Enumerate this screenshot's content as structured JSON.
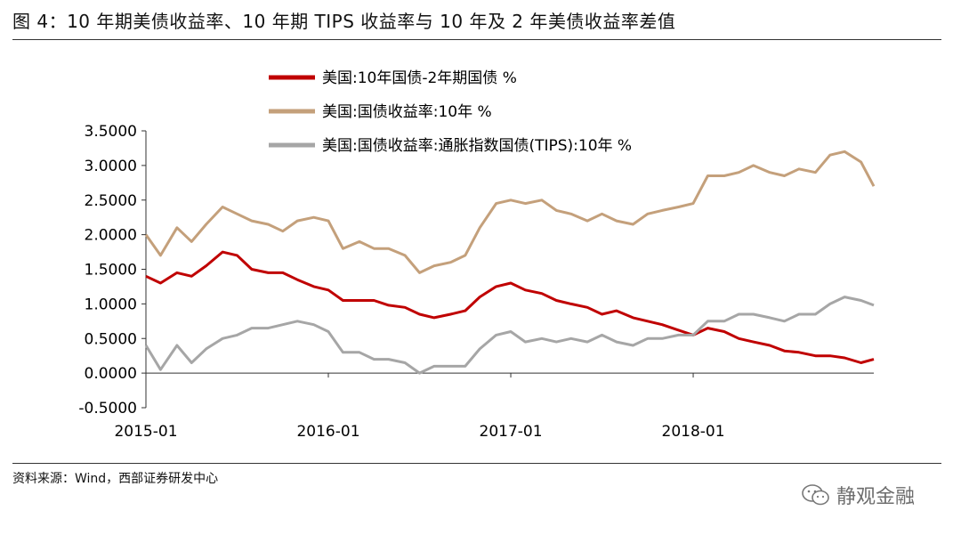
{
  "title": "图 4：10 年期美债收益率、10 年期 TIPS 收益率与 10 年及 2 年美债收益率差值",
  "source": "资料来源：Wind，西部证券研发中心",
  "watermark": "静观金融",
  "colors": {
    "spread": "#c00000",
    "nominal": "#c4a07b",
    "tips": "#a6a6a6"
  },
  "chart_data": {
    "type": "line",
    "title": "",
    "xlabel": "",
    "ylabel": "",
    "xlim": [
      2015.0,
      2018.99
    ],
    "ylim": [
      -0.5,
      3.5
    ],
    "yticks": [
      3.5,
      3.0,
      2.5,
      2.0,
      1.5,
      1.0,
      0.5,
      0.0,
      -0.5
    ],
    "ytick_labels": [
      "3.5000",
      "3.0000",
      "2.5000",
      "2.0000",
      "1.5000",
      "1.0000",
      "0.5000",
      "0.0000",
      "-0.5000"
    ],
    "xticks": [
      2015.0,
      2016.0,
      2017.0,
      2018.0
    ],
    "xtick_labels": [
      "2015-01",
      "2016-01",
      "2017-01",
      "2018-01"
    ],
    "legend_position": "top-center",
    "series": [
      {
        "name": "美国:10年国债-2年期国债 %",
        "color_key": "spread",
        "x": [
          2015.0,
          2015.08,
          2015.17,
          2015.25,
          2015.33,
          2015.42,
          2015.5,
          2015.58,
          2015.67,
          2015.75,
          2015.83,
          2015.92,
          2016.0,
          2016.08,
          2016.17,
          2016.25,
          2016.33,
          2016.42,
          2016.5,
          2016.58,
          2016.67,
          2016.75,
          2016.83,
          2016.92,
          2017.0,
          2017.08,
          2017.17,
          2017.25,
          2017.33,
          2017.42,
          2017.5,
          2017.58,
          2017.67,
          2017.75,
          2017.83,
          2017.92,
          2018.0,
          2018.08,
          2018.17,
          2018.25,
          2018.33,
          2018.42,
          2018.5,
          2018.58,
          2018.67,
          2018.75,
          2018.83,
          2018.92,
          2018.99
        ],
        "y": [
          1.4,
          1.3,
          1.45,
          1.4,
          1.55,
          1.75,
          1.7,
          1.5,
          1.45,
          1.45,
          1.35,
          1.25,
          1.2,
          1.05,
          1.05,
          1.05,
          0.98,
          0.95,
          0.85,
          0.8,
          0.85,
          0.9,
          1.1,
          1.25,
          1.3,
          1.2,
          1.15,
          1.05,
          1.0,
          0.95,
          0.85,
          0.9,
          0.8,
          0.75,
          0.7,
          0.62,
          0.55,
          0.65,
          0.6,
          0.5,
          0.45,
          0.4,
          0.32,
          0.3,
          0.25,
          0.25,
          0.22,
          0.15,
          0.2
        ]
      },
      {
        "name": "美国:国债收益率:10年 %",
        "color_key": "nominal",
        "x": [
          2015.0,
          2015.08,
          2015.17,
          2015.25,
          2015.33,
          2015.42,
          2015.5,
          2015.58,
          2015.67,
          2015.75,
          2015.83,
          2015.92,
          2016.0,
          2016.08,
          2016.17,
          2016.25,
          2016.33,
          2016.42,
          2016.5,
          2016.58,
          2016.67,
          2016.75,
          2016.83,
          2016.92,
          2017.0,
          2017.08,
          2017.17,
          2017.25,
          2017.33,
          2017.42,
          2017.5,
          2017.58,
          2017.67,
          2017.75,
          2017.83,
          2017.92,
          2018.0,
          2018.08,
          2018.17,
          2018.25,
          2018.33,
          2018.42,
          2018.5,
          2018.58,
          2018.67,
          2018.75,
          2018.83,
          2018.92,
          2018.99
        ],
        "y": [
          2.0,
          1.7,
          2.1,
          1.9,
          2.15,
          2.4,
          2.3,
          2.2,
          2.15,
          2.05,
          2.2,
          2.25,
          2.2,
          1.8,
          1.9,
          1.8,
          1.8,
          1.7,
          1.45,
          1.55,
          1.6,
          1.7,
          2.1,
          2.45,
          2.5,
          2.45,
          2.5,
          2.35,
          2.3,
          2.2,
          2.3,
          2.2,
          2.15,
          2.3,
          2.35,
          2.4,
          2.45,
          2.85,
          2.85,
          2.9,
          3.0,
          2.9,
          2.85,
          2.95,
          2.9,
          3.15,
          3.2,
          3.05,
          2.7
        ]
      },
      {
        "name": "美国:国债收益率:通胀指数国债(TIPS):10年 %",
        "color_key": "tips",
        "x": [
          2015.0,
          2015.08,
          2015.17,
          2015.25,
          2015.33,
          2015.42,
          2015.5,
          2015.58,
          2015.67,
          2015.75,
          2015.83,
          2015.92,
          2016.0,
          2016.08,
          2016.17,
          2016.25,
          2016.33,
          2016.42,
          2016.5,
          2016.58,
          2016.67,
          2016.75,
          2016.83,
          2016.92,
          2017.0,
          2017.08,
          2017.17,
          2017.25,
          2017.33,
          2017.42,
          2017.5,
          2017.58,
          2017.67,
          2017.75,
          2017.83,
          2017.92,
          2018.0,
          2018.08,
          2018.17,
          2018.25,
          2018.33,
          2018.42,
          2018.5,
          2018.58,
          2018.67,
          2018.75,
          2018.83,
          2018.92,
          2018.99
        ],
        "y": [
          0.4,
          0.05,
          0.4,
          0.15,
          0.35,
          0.5,
          0.55,
          0.65,
          0.65,
          0.7,
          0.75,
          0.7,
          0.6,
          0.3,
          0.3,
          0.2,
          0.2,
          0.15,
          0.0,
          0.1,
          0.1,
          0.1,
          0.35,
          0.55,
          0.6,
          0.45,
          0.5,
          0.45,
          0.5,
          0.45,
          0.55,
          0.45,
          0.4,
          0.5,
          0.5,
          0.55,
          0.55,
          0.75,
          0.75,
          0.85,
          0.85,
          0.8,
          0.75,
          0.85,
          0.85,
          1.0,
          1.1,
          1.05,
          0.98
        ]
      }
    ]
  }
}
